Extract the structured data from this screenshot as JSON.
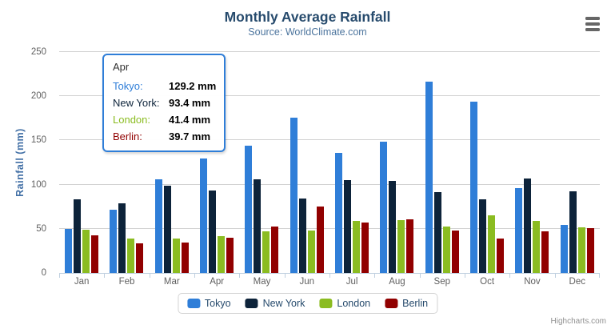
{
  "chart_data": {
    "type": "bar",
    "variant": "column",
    "title": "Monthly Average Rainfall",
    "subtitle": "Source: WorldClimate.com",
    "xlabel": "",
    "ylabel": "Rainfall (mm)",
    "ylim": [
      0,
      250
    ],
    "yticks": [
      0,
      50,
      100,
      150,
      200,
      250
    ],
    "grid": true,
    "legend_position": "bottom",
    "categories": [
      "Jan",
      "Feb",
      "Mar",
      "Apr",
      "May",
      "Jun",
      "Jul",
      "Aug",
      "Sep",
      "Oct",
      "Nov",
      "Dec"
    ],
    "series": [
      {
        "name": "Tokyo",
        "color": "#2f7ed8",
        "values": [
          49.9,
          71.5,
          106.4,
          129.2,
          144.0,
          176.0,
          135.6,
          148.5,
          216.4,
          194.1,
          95.6,
          54.4
        ]
      },
      {
        "name": "New York",
        "color": "#0d233a",
        "values": [
          83.6,
          78.8,
          98.5,
          93.4,
          106.0,
          84.5,
          105.0,
          104.3,
          91.2,
          83.5,
          106.6,
          92.3
        ]
      },
      {
        "name": "London",
        "color": "#8bbc21",
        "values": [
          48.9,
          38.8,
          39.3,
          41.4,
          47.0,
          48.3,
          59.0,
          59.6,
          52.4,
          65.2,
          59.3,
          51.2
        ]
      },
      {
        "name": "Berlin",
        "color": "#910000",
        "values": [
          42.4,
          33.2,
          34.5,
          39.7,
          52.6,
          75.5,
          57.4,
          60.4,
          47.6,
          39.1,
          46.8,
          51.1
        ]
      }
    ]
  },
  "tooltip": {
    "header": "Apr",
    "border_color": "#2f7ed8",
    "unit": "mm",
    "rows": [
      {
        "label": "Tokyo",
        "value": "129.2",
        "color": "#2f7ed8"
      },
      {
        "label": "New York",
        "value": "93.4",
        "color": "#0d233a"
      },
      {
        "label": "London",
        "value": "41.4",
        "color": "#8bbc21"
      },
      {
        "label": "Berlin",
        "value": "39.7",
        "color": "#910000"
      }
    ]
  },
  "credits": {
    "text": "Highcharts.com"
  },
  "icons": {
    "context_menu": "hamburger-menu-icon"
  },
  "palette": {
    "title": "#274b6d",
    "subtitle": "#4d759e",
    "y_axis_title": "#4572a7",
    "axis_label": "#606060",
    "gridline": "#d2d2d2",
    "axis_line": "#c0d0e0"
  }
}
